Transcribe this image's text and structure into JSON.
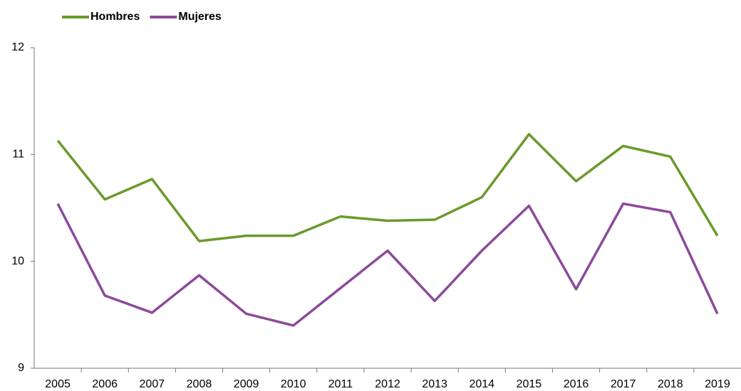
{
  "chart_data": {
    "type": "line",
    "categories": [
      "2005",
      "2006",
      "2007",
      "2008",
      "2009",
      "2010",
      "2011",
      "2012",
      "2013",
      "2014",
      "2015",
      "2016",
      "2017",
      "2018",
      "2019"
    ],
    "series": [
      {
        "name": "Hombres",
        "color": "#6a9a2b",
        "values": [
          11.13,
          10.58,
          10.77,
          10.19,
          10.24,
          10.24,
          10.42,
          10.38,
          10.39,
          10.6,
          11.19,
          10.75,
          11.08,
          10.98,
          10.24
        ]
      },
      {
        "name": "Mujeres",
        "color": "#8c4a9a",
        "values": [
          10.54,
          9.68,
          9.52,
          9.87,
          9.51,
          9.4,
          9.75,
          10.1,
          9.63,
          10.1,
          10.52,
          9.74,
          10.54,
          10.46,
          9.51
        ]
      }
    ],
    "ylim": [
      9,
      12
    ],
    "yticks": [
      9,
      10,
      11,
      12
    ],
    "grid": false,
    "legend": "top-left"
  }
}
